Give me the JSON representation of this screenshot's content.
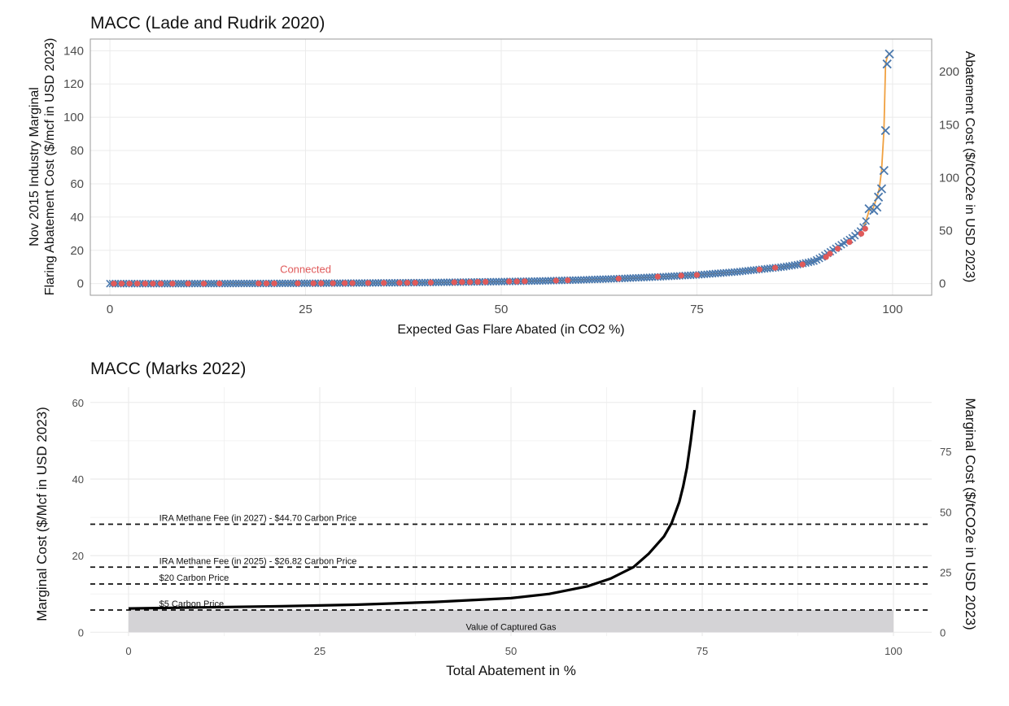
{
  "chart_data": [
    {
      "type": "scatter",
      "title": "MACC (Lade and Rudrik 2020)",
      "xlabel": "Expected Gas Flare Abated (in CO2 %)",
      "ylabel_lines": [
        "Nov 2015 Industry Marginal",
        "Flaring Abatement Cost ($/mcf in USD 2023)"
      ],
      "ylabel2": "Abatement Cost ($/tCO2e in USD 2023)",
      "xlim": [
        -2.5,
        105
      ],
      "ylim": [
        -7,
        147
      ],
      "xticks": [
        0,
        25,
        50,
        75,
        100
      ],
      "yticks": [
        0,
        20,
        40,
        60,
        80,
        100,
        120,
        140
      ],
      "yticks2": [
        0,
        50,
        100,
        150,
        200
      ],
      "y2_per_y": 1.57,
      "grid": true,
      "annotation": {
        "text": "Connected",
        "x": 25,
        "y": 8.5
      },
      "colors": {
        "not_connected": "#4a78ad",
        "connected": "#e05a5a",
        "curve": "#f0a040"
      },
      "curve": {
        "x": [
          0,
          10,
          20,
          30,
          40,
          50,
          55,
          60,
          65,
          70,
          75,
          80,
          84,
          86,
          88,
          90,
          91,
          92,
          93,
          94,
          95,
          96,
          96.5,
          97,
          97.5,
          98,
          98.3,
          98.6,
          98.9,
          99.1,
          99.3,
          99.5
        ],
        "y": [
          0,
          0,
          0.1,
          0.3,
          0.6,
          1.2,
          1.6,
          2.2,
          3,
          4,
          5.2,
          7,
          9,
          10,
          11.5,
          13.5,
          16,
          19,
          22,
          25,
          28,
          32,
          36,
          44,
          45,
          52,
          57,
          68,
          92,
          132,
          136,
          138
        ]
      },
      "connected_points": {
        "x": [
          0.5,
          1.5,
          2.5,
          3.5,
          4.5,
          5.5,
          6.5,
          8,
          10,
          12,
          14,
          19,
          20,
          21,
          24,
          26,
          27,
          28.5,
          30,
          31,
          33,
          35,
          37,
          38,
          39,
          41,
          44,
          45,
          46,
          47,
          48,
          51,
          52,
          53,
          57,
          58.5,
          65,
          70,
          73,
          75,
          83,
          85,
          88.5,
          91.5,
          92,
          93,
          94.5,
          96,
          96.5
        ],
        "y": [
          0,
          0,
          0,
          0,
          0,
          0,
          0,
          0,
          0,
          0,
          0.05,
          0.1,
          0.1,
          0.12,
          0.15,
          0.2,
          0.2,
          0.25,
          0.3,
          0.3,
          0.35,
          0.4,
          0.45,
          0.5,
          0.5,
          0.6,
          0.8,
          0.9,
          0.9,
          1,
          1.05,
          1.3,
          1.3,
          1.4,
          1.8,
          2,
          3,
          4.2,
          4.8,
          5.2,
          8.5,
          9.5,
          11.5,
          16,
          18,
          21,
          25,
          30,
          33
        ]
      },
      "x_markers": {
        "x": [
          97,
          97.6,
          98,
          98.2,
          98.6,
          98.9,
          99.1,
          99.3,
          99.6
        ],
        "y": [
          45,
          44,
          46,
          52,
          57,
          68,
          92,
          132,
          138
        ]
      }
    },
    {
      "type": "line",
      "title": "MACC (Marks 2022)",
      "xlabel": "Total Abatement in %",
      "ylabel": "Marginal Cost ($/Mcf in USD 2023)",
      "ylabel2": "Marginal Cost ($/tCO2e in USD 2023)",
      "xlim": [
        -5,
        105
      ],
      "ylim": [
        -1,
        64
      ],
      "xticks": [
        0,
        25,
        50,
        75,
        100
      ],
      "yticks": [
        0,
        20,
        40,
        60
      ],
      "yticks2": [
        0,
        25,
        50,
        75
      ],
      "y2_per_y": 1.59,
      "grid": true,
      "curve": {
        "x": [
          0,
          10,
          20,
          30,
          40,
          50,
          55,
          60,
          63,
          66,
          68,
          70,
          71,
          72,
          72.5,
          73,
          73.5,
          74
        ],
        "y": [
          6.2,
          6.5,
          6.8,
          7.2,
          7.9,
          8.9,
          10,
          12,
          14,
          17,
          20.5,
          25,
          28.5,
          34,
          38,
          43,
          50,
          58
        ]
      },
      "reference_lines": [
        {
          "label": "IRA Methane Fee (in 2027) - $44.70 Carbon Price",
          "y": 28.2
        },
        {
          "label": "IRA Methane Fee (in 2025) - $26.82 Carbon Price",
          "y": 17
        },
        {
          "label": "$20 Carbon Price",
          "y": 12.6
        },
        {
          "label": "$5 Carbon Price",
          "y": 5.8
        }
      ],
      "shaded_area": {
        "label": "Value of Captured Gas",
        "x": [
          0,
          100
        ],
        "y": [
          0,
          5.8
        ],
        "color": "#d4d3d6"
      }
    }
  ]
}
